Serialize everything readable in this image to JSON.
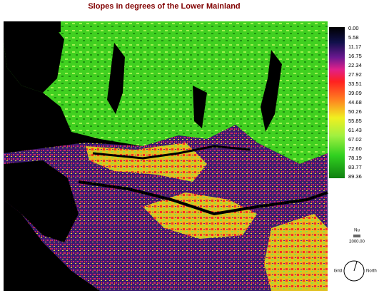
{
  "title": "Slopes in degrees of the Lower Mainland",
  "legend": {
    "labels": [
      "0.00",
      "5.58",
      "11.17",
      "16.75",
      "22.34",
      "27.92",
      "33.51",
      "39.09",
      "44.68",
      "50.26",
      "55.85",
      "61.43",
      "67.02",
      "72.60",
      "78.19",
      "83.77",
      "89.36"
    ]
  },
  "scale": {
    "unit": "Nu",
    "distance": "2000.00"
  },
  "north_arrow": {
    "left": "Grid",
    "right": "North"
  }
}
